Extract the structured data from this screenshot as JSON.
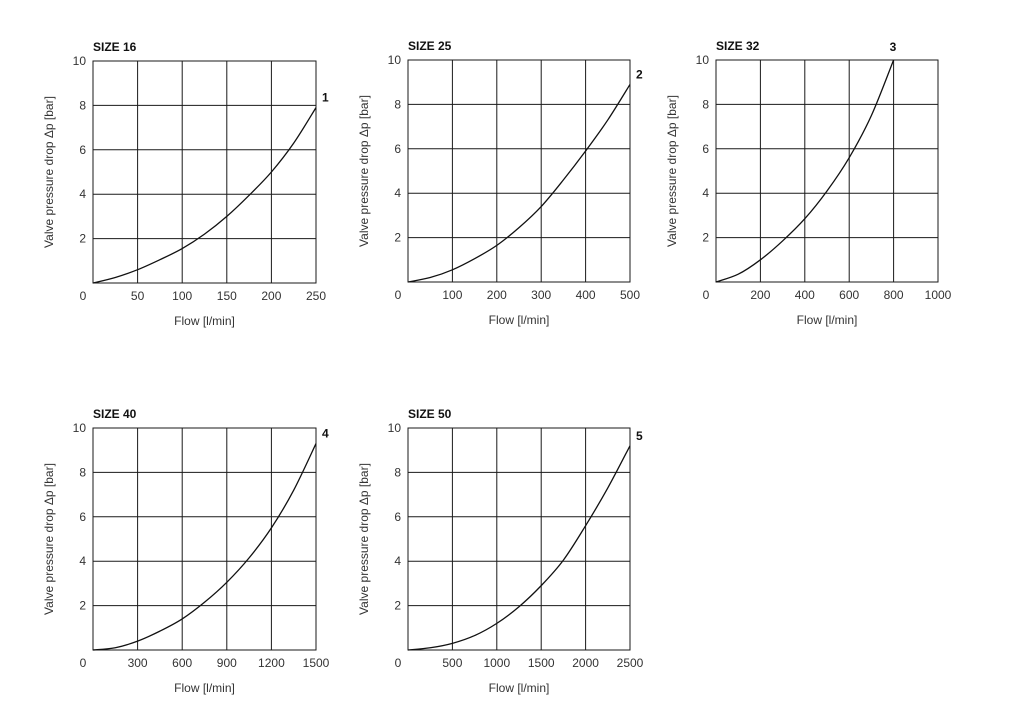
{
  "chart_data": [
    {
      "type": "line",
      "title": "SIZE 16",
      "xlabel": "Flow [l/min]",
      "ylabel": "Valve pressure drop Δp [bar]",
      "xlim": [
        0,
        250
      ],
      "ylim": [
        0,
        10
      ],
      "x_ticks": [
        "0",
        "50",
        "100",
        "150",
        "200",
        "250"
      ],
      "y_ticks": [
        "2",
        "4",
        "6",
        "8",
        "10"
      ],
      "grid": true,
      "series": [
        {
          "name": "1",
          "x": [
            0,
            25,
            50,
            75,
            100,
            125,
            150,
            175,
            200,
            225,
            250
          ],
          "y": [
            0,
            0.25,
            0.6,
            1.05,
            1.55,
            2.2,
            3.0,
            3.95,
            5.0,
            6.3,
            7.9
          ]
        }
      ]
    },
    {
      "type": "line",
      "title": "SIZE 25",
      "xlabel": "Flow [l/min]",
      "ylabel": "Valve pressure drop Δp [bar]",
      "xlim": [
        0,
        500
      ],
      "ylim": [
        0,
        10
      ],
      "x_ticks": [
        "0",
        "100",
        "200",
        "300",
        "400",
        "500"
      ],
      "y_ticks": [
        "2",
        "4",
        "6",
        "8",
        "10"
      ],
      "grid": true,
      "series": [
        {
          "name": "2",
          "x": [
            0,
            50,
            100,
            150,
            200,
            250,
            300,
            350,
            400,
            450,
            500
          ],
          "y": [
            0,
            0.2,
            0.55,
            1.05,
            1.65,
            2.45,
            3.4,
            4.6,
            5.9,
            7.3,
            8.9
          ]
        }
      ]
    },
    {
      "type": "line",
      "title": "SIZE 32",
      "xlabel": "Flow [l/min]",
      "ylabel": "Valve pressure drop Δp [bar]",
      "xlim": [
        0,
        1000
      ],
      "ylim": [
        0,
        10
      ],
      "x_ticks": [
        "0",
        "200",
        "400",
        "600",
        "800",
        "1000"
      ],
      "y_ticks": [
        "2",
        "4",
        "6",
        "8",
        "10"
      ],
      "grid": true,
      "series": [
        {
          "name": "3",
          "x": [
            0,
            100,
            200,
            300,
            400,
            500,
            600,
            700,
            800
          ],
          "y": [
            0,
            0.35,
            1.0,
            1.85,
            2.85,
            4.1,
            5.6,
            7.5,
            10.0
          ]
        }
      ]
    },
    {
      "type": "line",
      "title": "SIZE 40",
      "xlabel": "Flow [l/min]",
      "ylabel": "Valve pressure drop Δp [bar]",
      "xlim": [
        0,
        1500
      ],
      "ylim": [
        0,
        10
      ],
      "x_ticks": [
        "0",
        "300",
        "600",
        "900",
        "1200",
        "1500"
      ],
      "y_ticks": [
        "2",
        "4",
        "6",
        "8",
        "10"
      ],
      "grid": true,
      "series": [
        {
          "name": "4",
          "x": [
            0,
            150,
            300,
            450,
            600,
            750,
            900,
            1050,
            1200,
            1350,
            1500
          ],
          "y": [
            0,
            0.1,
            0.4,
            0.85,
            1.4,
            2.15,
            3.05,
            4.15,
            5.5,
            7.2,
            9.3
          ]
        }
      ]
    },
    {
      "type": "line",
      "title": "SIZE 50",
      "xlabel": "Flow [l/min]",
      "ylabel": "Valve pressure drop Δp [bar]",
      "xlim": [
        0,
        2500
      ],
      "ylim": [
        0,
        10
      ],
      "x_ticks": [
        "0",
        "500",
        "1000",
        "1500",
        "2000",
        "2500"
      ],
      "y_ticks": [
        "2",
        "4",
        "6",
        "8",
        "10"
      ],
      "grid": true,
      "series": [
        {
          "name": "5",
          "x": [
            0,
            250,
            500,
            750,
            1000,
            1250,
            1500,
            1750,
            2000,
            2250,
            2500
          ],
          "y": [
            0,
            0.1,
            0.3,
            0.65,
            1.2,
            1.95,
            2.9,
            4.05,
            5.6,
            7.3,
            9.2
          ]
        }
      ]
    }
  ]
}
